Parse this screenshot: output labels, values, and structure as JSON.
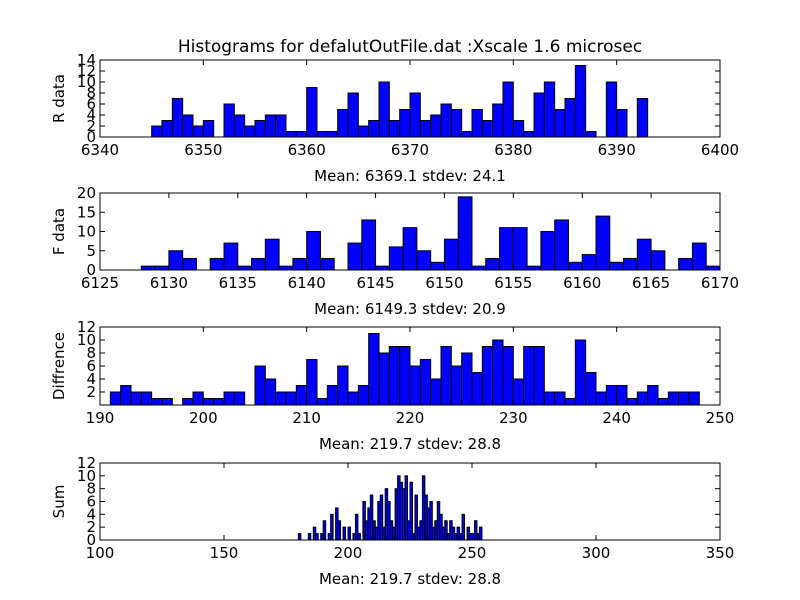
{
  "figure": {
    "title": "Histograms for defalutOutFile.dat :Xscale 1.6 microsec"
  },
  "colors": {
    "bar_fill": "#0000ff",
    "bar_edge": "#000000",
    "background": "#ffffff"
  },
  "chart_data": [
    {
      "type": "bar",
      "ylabel": "R data",
      "xlabel": "Mean: 6369.1  stdev: 24.1",
      "xlim": [
        6340,
        6400
      ],
      "ylim": [
        0,
        14
      ],
      "xticks": [
        "6340",
        "6350",
        "6360",
        "6370",
        "6380",
        "6390",
        "6400"
      ],
      "yticks": [
        "0",
        "2",
        "4",
        "6",
        "8",
        "10",
        "12",
        "14"
      ],
      "bin_width": 1,
      "x": [
        6345,
        6346,
        6347,
        6348,
        6349,
        6350,
        6352,
        6353,
        6354,
        6355,
        6356,
        6357,
        6358,
        6359,
        6360,
        6361,
        6362,
        6363,
        6364,
        6365,
        6366,
        6367,
        6368,
        6369,
        6370,
        6371,
        6372,
        6373,
        6374,
        6375,
        6376,
        6377,
        6378,
        6379,
        6380,
        6381,
        6382,
        6383,
        6384,
        6385,
        6386,
        6387,
        6389,
        6390,
        6392
      ],
      "values": [
        2,
        3,
        7,
        4,
        2,
        3,
        6,
        4,
        2,
        3,
        4,
        4,
        1,
        1,
        9,
        1,
        1,
        5,
        8,
        2,
        3,
        10,
        3,
        5,
        8,
        3,
        4,
        6,
        5,
        1,
        5,
        3,
        6,
        10,
        3,
        1,
        8,
        10,
        5,
        7,
        13,
        1,
        10,
        5,
        7
      ]
    },
    {
      "type": "bar",
      "ylabel": "F data",
      "xlabel": "Mean: 6149.3  stdev: 20.9",
      "xlim": [
        6125,
        6170
      ],
      "ylim": [
        0,
        20
      ],
      "xticks": [
        "6125",
        "6130",
        "6135",
        "6140",
        "6145",
        "6150",
        "6155",
        "6160",
        "6165",
        "6170"
      ],
      "yticks": [
        "0",
        "5",
        "10",
        "15",
        "20"
      ],
      "bin_width": 1,
      "x": [
        6128,
        6129,
        6130,
        6131,
        6133,
        6134,
        6135,
        6136,
        6137,
        6138,
        6139,
        6140,
        6141,
        6143,
        6144,
        6145,
        6146,
        6147,
        6148,
        6149,
        6150,
        6151,
        6152,
        6153,
        6154,
        6155,
        6156,
        6157,
        6158,
        6159,
        6160,
        6161,
        6162,
        6163,
        6164,
        6165,
        6167,
        6168,
        6169
      ],
      "values": [
        1,
        1,
        5,
        3,
        3,
        7,
        1,
        3,
        8,
        1,
        3,
        10,
        3,
        7,
        13,
        1,
        6,
        11,
        5,
        2,
        8,
        19,
        1,
        3,
        11,
        11,
        1,
        10,
        13,
        2,
        4,
        14,
        2,
        3,
        8,
        5,
        3,
        7,
        1
      ]
    },
    {
      "type": "bar",
      "ylabel": "Diffrence",
      "xlabel": "Mean: 219.7  stdev: 28.8",
      "xlim": [
        190,
        250
      ],
      "ylim": [
        0,
        12
      ],
      "xticks": [
        "190",
        "200",
        "210",
        "220",
        "230",
        "240",
        "250"
      ],
      "yticks": [
        "2",
        "4",
        "6",
        "8",
        "10",
        "12"
      ],
      "bin_width": 1,
      "x": [
        191,
        192,
        193,
        194,
        195,
        196,
        198,
        199,
        200,
        201,
        202,
        203,
        205,
        206,
        207,
        208,
        209,
        210,
        211,
        212,
        213,
        214,
        215,
        216,
        217,
        218,
        219,
        220,
        221,
        222,
        223,
        224,
        225,
        226,
        227,
        228,
        229,
        230,
        231,
        232,
        233,
        234,
        235,
        236,
        237,
        238,
        239,
        240,
        241,
        242,
        243,
        244,
        245,
        246,
        247
      ],
      "values": [
        2,
        3,
        2,
        2,
        1,
        1,
        1,
        2,
        1,
        1,
        2,
        2,
        6,
        4,
        2,
        2,
        3,
        7,
        1,
        3,
        6,
        2,
        3,
        11,
        8,
        9,
        9,
        6,
        7,
        4,
        9,
        6,
        8,
        5,
        9,
        10,
        9,
        4,
        9,
        9,
        2,
        2,
        1,
        10,
        5,
        2,
        3,
        3,
        1,
        2,
        3,
        1,
        2,
        2,
        2
      ]
    },
    {
      "type": "bar",
      "ylabel": "Sum",
      "xlabel": "Mean: 219.7  stdev: 28.8",
      "xlim": [
        100,
        350
      ],
      "ylim": [
        0,
        12
      ],
      "xticks": [
        "100",
        "150",
        "200",
        "250",
        "300",
        "350"
      ],
      "yticks": [
        "0",
        "2",
        "4",
        "6",
        "8",
        "10",
        "12"
      ],
      "bin_width": 1,
      "x": [
        180,
        184,
        186,
        187,
        189,
        190,
        192,
        193,
        195,
        196,
        198,
        200,
        202,
        203,
        204,
        206,
        207,
        208,
        209,
        210,
        211,
        212,
        213,
        214,
        215,
        216,
        217,
        218,
        219,
        220,
        221,
        222,
        223,
        224,
        225,
        226,
        227,
        228,
        229,
        230,
        231,
        232,
        233,
        234,
        235,
        236,
        237,
        238,
        239,
        240,
        241,
        242,
        243,
        244,
        245,
        246,
        248,
        249,
        250,
        251,
        252,
        253
      ],
      "values": [
        1,
        1,
        2,
        1,
        1,
        3,
        1,
        4,
        5,
        3,
        2,
        2,
        1,
        4,
        1,
        6,
        3,
        5,
        7,
        3,
        2,
        6,
        7,
        2,
        8,
        6,
        3,
        2,
        8,
        10,
        9,
        8,
        10,
        3,
        9,
        1,
        7,
        2,
        3,
        10,
        7,
        5,
        6,
        2,
        3,
        6,
        4,
        2,
        3,
        1,
        3,
        2,
        1,
        2,
        1,
        4,
        2,
        1,
        1,
        3,
        1,
        2
      ]
    }
  ]
}
